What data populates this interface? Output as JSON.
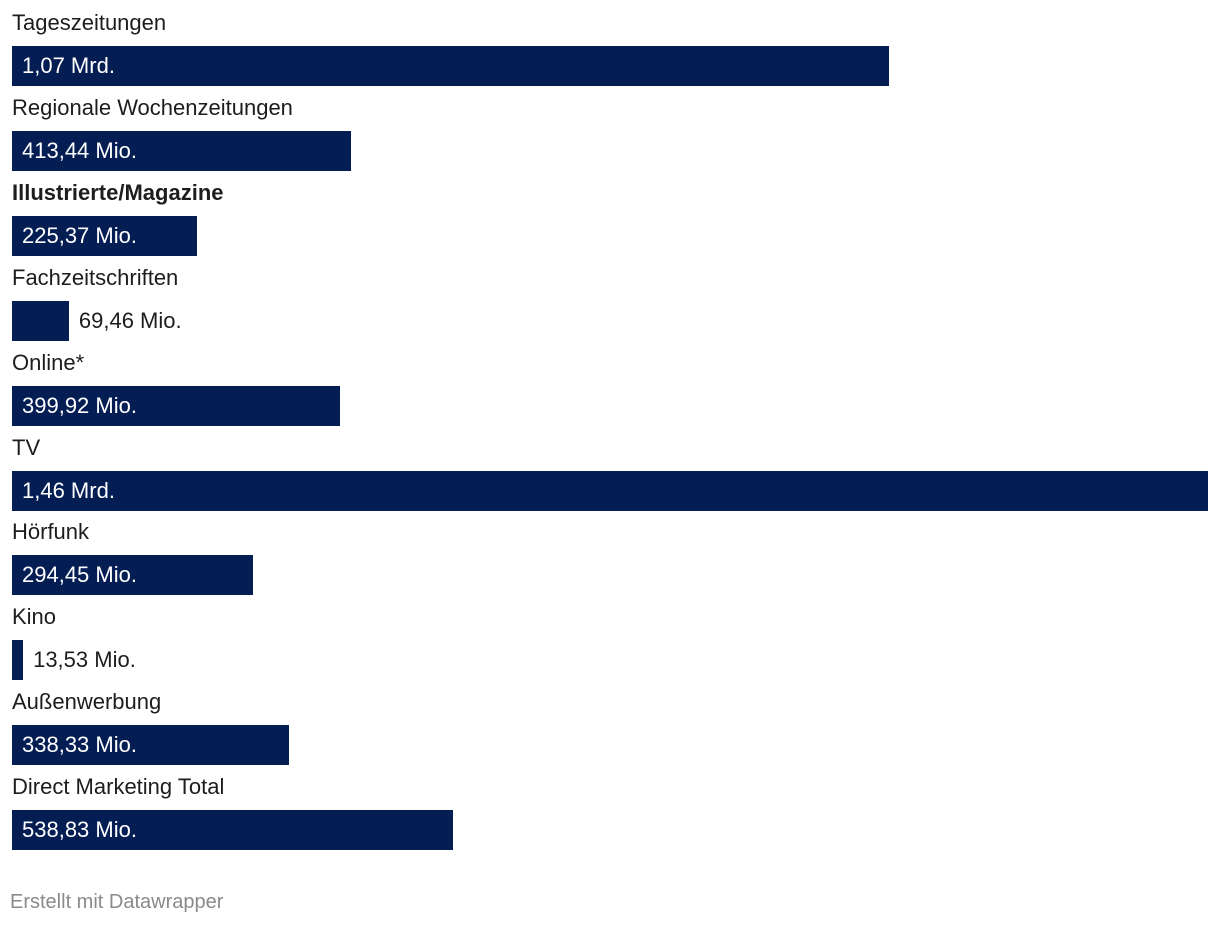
{
  "chart_data": {
    "type": "bar",
    "orientation": "horizontal",
    "bar_color": "#041e54",
    "categories": [
      "Tageszeitungen",
      "Regionale Wochenzeitungen",
      "Illustrierte/Magazine",
      "Fachzeitschriften",
      "Online*",
      "TV",
      "Hörfunk",
      "Kino",
      "Außenwerbung",
      "Direct Marketing Total"
    ],
    "values": [
      1070000000,
      413440000,
      225370000,
      69460000,
      399920000,
      1460000000,
      294450000,
      13530000,
      338330000,
      538830000
    ],
    "value_labels": [
      "1,07 Mrd.",
      "413,44 Mio.",
      "225,37 Mio.",
      "69,46 Mio.",
      "399,92 Mio.",
      "1,46 Mrd.",
      "294,45 Mio.",
      "13,53 Mio.",
      "338,33 Mio.",
      "538,83 Mio."
    ],
    "highlighted_category": "Illustrierte/Magazine",
    "xlim": [
      0,
      1460000000
    ],
    "grid": false,
    "legend": "none"
  },
  "footer": {
    "credit": "Erstellt mit Datawrapper"
  }
}
